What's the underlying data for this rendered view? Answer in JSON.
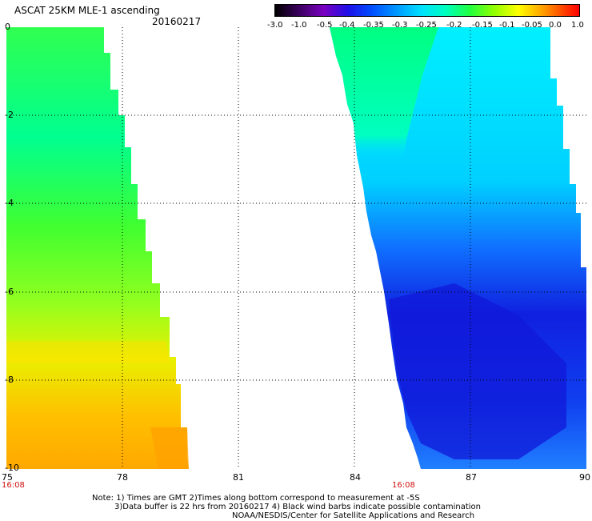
{
  "header": {
    "title": "ASCAT 25KM MLE-1 ascending",
    "date": "20160217"
  },
  "colorbar": {
    "labels": [
      "-3.0",
      "-1.0",
      "-0.5",
      "-0.4",
      "-0.35",
      "-0.3",
      "-0.25",
      "-0.2",
      "-0.15",
      "-0.1",
      "-0.05",
      "0.0",
      "1.0"
    ],
    "colors": [
      "#000000",
      "#5a0078",
      "#8a00c8",
      "#2a10e6",
      "#0040ff",
      "#0088ff",
      "#00c8ff",
      "#00ffe0",
      "#00ff80",
      "#40ff20",
      "#b0ff00",
      "#ffff00",
      "#ffc000",
      "#ff8000",
      "#ff3000",
      "#ff0000"
    ]
  },
  "axes": {
    "y_ticks": [
      "0",
      "-2",
      "-4",
      "-6",
      "-8",
      "-10"
    ],
    "x_ticks": [
      "75",
      "78",
      "81",
      "84",
      "87",
      "90"
    ],
    "time_labels": [
      "16:08",
      "16:08"
    ]
  },
  "notes": {
    "line1": "Note: 1) Times are GMT 2)Times along bottom correspond to measurement at -5S",
    "line2": "3)Data buffer is 22 hrs from 20160217 4) Black wind barbs indicate possible contamination",
    "line3": "NOAA/NESDIS/Center for Satellite Applications and Research"
  }
}
